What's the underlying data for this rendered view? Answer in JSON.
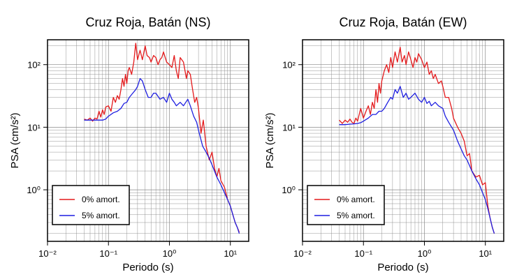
{
  "chart_data": [
    {
      "type": "line",
      "title": "Cruz Roja, Batán (NS)",
      "xlabel": "Periodo (s)",
      "ylabel": "PSA (cm/s²)",
      "xscale": "log",
      "yscale": "log",
      "xlim": [
        0.01,
        20
      ],
      "ylim": [
        0.15,
        250
      ],
      "grid": true,
      "legend": "bottom-left",
      "x_tick_labels": [
        "10⁻²",
        "10⁻¹",
        "10⁰",
        "10¹"
      ],
      "y_tick_labels": [
        "10⁰",
        "10¹",
        "10²"
      ],
      "series": [
        {
          "name": "0% amort.",
          "color": "#e41a1c",
          "x": [
            0.04,
            0.045,
            0.05,
            0.055,
            0.06,
            0.065,
            0.07,
            0.075,
            0.08,
            0.085,
            0.09,
            0.1,
            0.11,
            0.12,
            0.13,
            0.14,
            0.15,
            0.16,
            0.17,
            0.18,
            0.19,
            0.2,
            0.21,
            0.22,
            0.24,
            0.26,
            0.28,
            0.3,
            0.33,
            0.36,
            0.4,
            0.43,
            0.47,
            0.5,
            0.55,
            0.6,
            0.65,
            0.7,
            0.75,
            0.8,
            0.9,
            1.0,
            1.1,
            1.2,
            1.3,
            1.4,
            1.5,
            1.7,
            1.9,
            2.0,
            2.2,
            2.4,
            2.6,
            2.8,
            3.0,
            3.3,
            3.6,
            4.0,
            4.5,
            5.0,
            5.5,
            6.0,
            6.5,
            7.0,
            8.0,
            9.0,
            10.0,
            11.0,
            12.0,
            13.0,
            14.0
          ],
          "y": [
            13.5,
            13,
            14,
            12.5,
            14,
            13.5,
            18,
            14.5,
            19,
            16,
            21,
            22,
            18,
            30,
            25,
            32,
            28,
            40,
            60,
            45,
            70,
            50,
            80,
            90,
            70,
            110,
            220,
            120,
            170,
            120,
            200,
            140,
            130,
            110,
            140,
            130,
            100,
            120,
            130,
            160,
            110,
            100,
            90,
            140,
            80,
            60,
            130,
            110,
            60,
            80,
            70,
            40,
            25,
            30,
            20,
            8,
            13,
            5,
            3,
            4,
            2.2,
            1.6,
            2.2,
            1.4,
            1.1,
            0.7,
            0.55,
            0.4,
            0.3,
            0.25,
            0.21
          ]
        },
        {
          "name": "5% amort.",
          "color": "#1f1fe0",
          "x": [
            0.04,
            0.05,
            0.06,
            0.07,
            0.08,
            0.09,
            0.1,
            0.12,
            0.14,
            0.16,
            0.18,
            0.2,
            0.22,
            0.25,
            0.28,
            0.3,
            0.33,
            0.36,
            0.4,
            0.45,
            0.5,
            0.55,
            0.6,
            0.7,
            0.8,
            0.9,
            1.0,
            1.1,
            1.2,
            1.3,
            1.5,
            1.7,
            2.0,
            2.2,
            2.5,
            2.8,
            3.0,
            3.5,
            4.0,
            4.5,
            5.0,
            6.0,
            7.0,
            8.0,
            9.0,
            10.0,
            11.0,
            12.0,
            13.0,
            14.0
          ],
          "y": [
            13,
            13,
            13,
            13,
            13,
            13.5,
            15,
            17,
            18,
            20,
            24,
            25,
            30,
            35,
            40,
            45,
            60,
            55,
            40,
            30,
            30,
            35,
            35,
            28,
            30,
            25,
            35,
            28,
            25,
            22,
            25,
            22,
            28,
            22,
            15,
            12,
            9,
            5,
            4,
            3.2,
            2.5,
            1.6,
            1.2,
            0.9,
            0.7,
            0.55,
            0.4,
            0.3,
            0.25,
            0.2
          ]
        }
      ]
    },
    {
      "type": "line",
      "title": "Cruz Roja, Batán (EW)",
      "xlabel": "Periodo (s)",
      "ylabel": "PSA (cm/s²)",
      "xscale": "log",
      "yscale": "log",
      "xlim": [
        0.01,
        20
      ],
      "ylim": [
        0.15,
        250
      ],
      "grid": true,
      "legend": "bottom-left",
      "x_tick_labels": [
        "10⁻²",
        "10⁻¹",
        "10⁰",
        "10¹"
      ],
      "y_tick_labels": [
        "10⁰",
        "10¹",
        "10²"
      ],
      "series": [
        {
          "name": "0% amort.",
          "color": "#e41a1c",
          "x": [
            0.04,
            0.045,
            0.05,
            0.055,
            0.06,
            0.065,
            0.07,
            0.075,
            0.08,
            0.09,
            0.1,
            0.11,
            0.12,
            0.13,
            0.14,
            0.15,
            0.16,
            0.17,
            0.18,
            0.19,
            0.2,
            0.22,
            0.24,
            0.26,
            0.28,
            0.3,
            0.33,
            0.36,
            0.4,
            0.43,
            0.47,
            0.5,
            0.55,
            0.6,
            0.65,
            0.7,
            0.75,
            0.8,
            0.9,
            1.0,
            1.1,
            1.2,
            1.3,
            1.4,
            1.5,
            1.7,
            1.9,
            2.0,
            2.2,
            2.5,
            2.8,
            3.0,
            3.5,
            4.0,
            4.5,
            5.0,
            5.5,
            6.0,
            7.0,
            8.0,
            9.0,
            10.0,
            11.0,
            12.0,
            13.0,
            14.0
          ],
          "y": [
            13,
            11.5,
            13,
            12,
            13.5,
            12,
            11.5,
            14,
            12.5,
            20,
            14,
            18,
            22,
            16,
            25,
            20,
            40,
            25,
            50,
            35,
            55,
            80,
            100,
            75,
            130,
            90,
            160,
            110,
            190,
            110,
            140,
            100,
            160,
            120,
            90,
            130,
            110,
            150,
            120,
            90,
            110,
            70,
            80,
            60,
            70,
            50,
            55,
            45,
            30,
            30,
            20,
            14,
            10,
            8,
            6,
            3.5,
            3.8,
            2,
            1.6,
            1.7,
            1.2,
            1.3,
            0.55,
            0.35,
            0.25,
            0.2
          ]
        },
        {
          "name": "5% amort.",
          "color": "#1f1fe0",
          "x": [
            0.04,
            0.05,
            0.06,
            0.07,
            0.08,
            0.09,
            0.1,
            0.12,
            0.14,
            0.16,
            0.18,
            0.2,
            0.22,
            0.25,
            0.28,
            0.3,
            0.33,
            0.36,
            0.4,
            0.45,
            0.5,
            0.55,
            0.6,
            0.7,
            0.8,
            0.9,
            1.0,
            1.1,
            1.2,
            1.3,
            1.5,
            1.7,
            2.0,
            2.2,
            2.5,
            2.8,
            3.0,
            3.5,
            4.0,
            4.5,
            5.0,
            6.0,
            7.0,
            8.0,
            9.0,
            10.0,
            11.0,
            12.0,
            13.0,
            14.0
          ],
          "y": [
            11,
            11,
            11.2,
            11.3,
            11.5,
            11.8,
            12.5,
            14,
            16,
            16,
            18,
            18,
            20,
            25,
            30,
            28,
            40,
            35,
            45,
            30,
            35,
            28,
            30,
            35,
            28,
            25,
            30,
            24,
            26,
            22,
            25,
            22,
            20,
            15,
            12,
            10,
            9,
            6,
            4.5,
            3.5,
            3,
            2,
            1.5,
            1.2,
            0.9,
            0.7,
            0.5,
            0.35,
            0.25,
            0.2
          ]
        }
      ]
    }
  ]
}
